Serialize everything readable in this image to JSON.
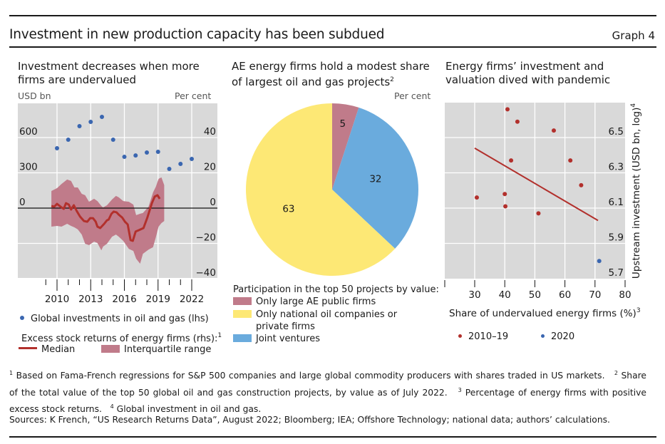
{
  "header": {
    "title": "Investment in new production capacity has been subdued",
    "graph_number": "Graph 4"
  },
  "panels": {
    "left": {
      "title_line1": "Investment decreases when more",
      "title_line2": "firms are undervalued",
      "unit_left": "USD bn",
      "unit_right": "Per cent",
      "legend": {
        "dots": "Global investments in oil and gas (lhs)",
        "group_title": "Excess stock returns of energy firms (rhs):",
        "group_sup": "1",
        "median": "Median",
        "iqr": "Interquartile range"
      }
    },
    "middle": {
      "title_line1": "AE energy firms hold a modest share",
      "title_line2": "of largest oil and gas projects",
      "title_sup": "2",
      "unit": "Per cent",
      "legend_title": "Participation in the top 50 projects by value:",
      "legend_items": [
        "Only large AE public firms",
        "Only national oil companies or",
        "private firms",
        "Joint ventures"
      ]
    },
    "right": {
      "title_line1": "Energy firms’ investment and",
      "title_line2": "valuation dived with pandemic",
      "legend": [
        "2010–19",
        "2020"
      ]
    }
  },
  "colors": {
    "plot_bg": "#d9d9d9",
    "dot_blue": "#3a66b0",
    "median_red": "#b2302c",
    "iqr_pink": "#c07b8a",
    "pie_pink": "#c07b8a",
    "pie_yellow": "#fde875",
    "pie_blue": "#6aabdd",
    "scatter_red": "#b2302c",
    "scatter_blue": "#3a66b0"
  },
  "chart_data": [
    {
      "type": "line",
      "title": "Investment decreases when more firms are undervalued",
      "xlabel": "",
      "ylabel_left": "USD bn",
      "ylabel_right": "Per cent",
      "x_ticks": [
        "2010",
        "2013",
        "2016",
        "2019",
        "2022"
      ],
      "xlim": [
        2006.5,
        2024.3
      ],
      "ylim_left": [
        -300,
        900
      ],
      "ylim_right": [
        -40,
        60
      ],
      "yticks_left": [
        "600",
        "300",
        "0"
      ],
      "yticks_left_values": [
        600,
        300,
        0
      ],
      "yticks_right": [
        "40",
        "20",
        "0",
        "−20",
        "−40"
      ],
      "yticks_right_values": [
        40,
        20,
        0,
        -20,
        -40
      ],
      "grid": true,
      "series": [
        {
          "name": "Global investments in oil and gas (lhs)",
          "kind": "scatter",
          "axis": "left",
          "x": [
            2010,
            2011,
            2012,
            2013,
            2014,
            2015,
            2016,
            2017,
            2018,
            2019,
            2020,
            2021,
            2022
          ],
          "values": [
            509,
            582,
            697,
            733,
            776,
            582,
            436,
            448,
            473,
            479,
            333,
            376,
            418
          ]
        },
        {
          "name": "Median",
          "kind": "line",
          "axis": "right",
          "x": [
            2009.5,
            2009.75,
            2010.0,
            2010.4,
            2010.6,
            2010.8,
            2011.05,
            2011.25,
            2011.5,
            2011.75,
            2012.05,
            2012.4,
            2012.7,
            2012.95,
            2013.2,
            2013.45,
            2013.6,
            2013.85,
            2014.2,
            2014.45,
            2014.6,
            2014.85,
            2015.05,
            2015.3,
            2015.55,
            2015.8,
            2016.05,
            2016.3,
            2016.55,
            2016.75,
            2017.0,
            2017.3,
            2017.7,
            2018.05,
            2018.45,
            2018.7,
            2018.95,
            2019.15
          ],
          "values": [
            1.2,
            0.8,
            2.4,
            0.4,
            -0.4,
            2.8,
            2.0,
            -0.8,
            1.6,
            -1.6,
            -4.8,
            -7.3,
            -7.7,
            -5.7,
            -5.7,
            -7.7,
            -10.5,
            -11.3,
            -8.9,
            -6.9,
            -6.5,
            -3.2,
            -2.0,
            -2.4,
            -4.0,
            -5.3,
            -7.7,
            -9.3,
            -18.2,
            -18.6,
            -13.3,
            -12.5,
            -11.3,
            -5.3,
            2.8,
            6.5,
            7.3,
            5.3
          ]
        },
        {
          "name": "Interquartile range",
          "kind": "band",
          "axis": "right",
          "x": [
            2009.5,
            2010.0,
            2010.4,
            2010.9,
            2011.25,
            2011.55,
            2011.85,
            2012.2,
            2012.5,
            2012.85,
            2013.3,
            2013.6,
            2013.95,
            2014.1,
            2014.45,
            2014.9,
            2015.25,
            2015.5,
            2015.9,
            2016.4,
            2016.8,
            2017.05,
            2017.4,
            2017.65,
            2018.15,
            2018.55,
            2018.8,
            2019.05,
            2019.3,
            2019.55
          ],
          "upper": [
            9.7,
            11.3,
            13.7,
            16.2,
            15.4,
            11.7,
            11.7,
            8.1,
            7.3,
            3.6,
            5.3,
            4.0,
            1.2,
            0.4,
            1.6,
            4.9,
            6.9,
            6.1,
            4.0,
            3.6,
            2.0,
            -4.0,
            -3.2,
            -2.8,
            0.8,
            8.9,
            12.1,
            16.6,
            17.4,
            13.0
          ],
          "lower": [
            -10.5,
            -10.1,
            -10.5,
            -8.9,
            -10.1,
            -10.9,
            -12.1,
            -15.0,
            -20.2,
            -21.0,
            -19.0,
            -19.8,
            -23.9,
            -21.8,
            -20.2,
            -16.2,
            -15.0,
            -16.2,
            -18.6,
            -23.1,
            -24.3,
            -28.7,
            -31.5,
            -25.9,
            -23.5,
            -22.2,
            -16.6,
            -10.5,
            -8.5,
            -7.3
          ]
        }
      ]
    },
    {
      "type": "pie",
      "title": "AE energy firms hold a modest share of largest oil and gas projects",
      "unit": "Per cent",
      "legend_title": "Participation in the top 50 projects by value:",
      "labels": [
        "Only large AE public firms",
        "Joint ventures",
        "Only national oil companies or private firms"
      ],
      "values": [
        5,
        32,
        63
      ],
      "start": "12 o'clock, clockwise"
    },
    {
      "type": "scatter",
      "title": "Energy firms’ investment and valuation dived with pandemic",
      "xlabel": "Share of undervalued energy firms (%)",
      "xlabel_sup": "3",
      "ylabel": "Upstream investment (USD bn, log)",
      "ylabel_sup": "4",
      "xlim": [
        20,
        80
      ],
      "ylim": [
        5.7,
        6.7
      ],
      "x_ticks": [
        "30",
        "40",
        "50",
        "60",
        "70",
        "80"
      ],
      "x_tick_values": [
        30,
        40,
        50,
        60,
        70,
        80
      ],
      "y_ticks": [
        "6.5",
        "6.3",
        "6.1",
        "5.9",
        "5.7"
      ],
      "y_tick_values": [
        6.5,
        6.3,
        6.1,
        5.9,
        5.7
      ],
      "grid": true,
      "legend_position": "bottom",
      "series": [
        {
          "name": "2010–19",
          "x": [
            40.9,
            44.2,
            56.3,
            42.1,
            61.8,
            65.4,
            30.7,
            40.0,
            40.2,
            51.2
          ],
          "y": [
            6.66,
            6.59,
            6.54,
            6.37,
            6.37,
            6.23,
            6.16,
            6.18,
            6.11,
            6.07
          ]
        },
        {
          "name": "2020",
          "x": [
            71.4
          ],
          "y": [
            5.8
          ]
        }
      ],
      "fit_line": {
        "x": [
          30,
          71
        ],
        "y": [
          6.44,
          6.03
        ]
      }
    }
  ],
  "footnotes": {
    "n1_sup": "1",
    "n1": "Based on Fama-French regressions for S&P 500 companies and large global commodity producers with shares traded in US markets.",
    "n2_sup": "2",
    "n2": "Share of the total value of the top 50 global oil and gas construction projects, by value as of July 2022.",
    "n3_sup": "3",
    "n3": "Percentage of energy firms with positive excess stock returns.",
    "n4_sup": "4",
    "n4": "Global investment in oil and gas."
  },
  "sources": "Sources: K French, “US Research Returns Data”, August 2022; Bloomberg; IEA; Offshore Technology; national data; authors’ calculations."
}
